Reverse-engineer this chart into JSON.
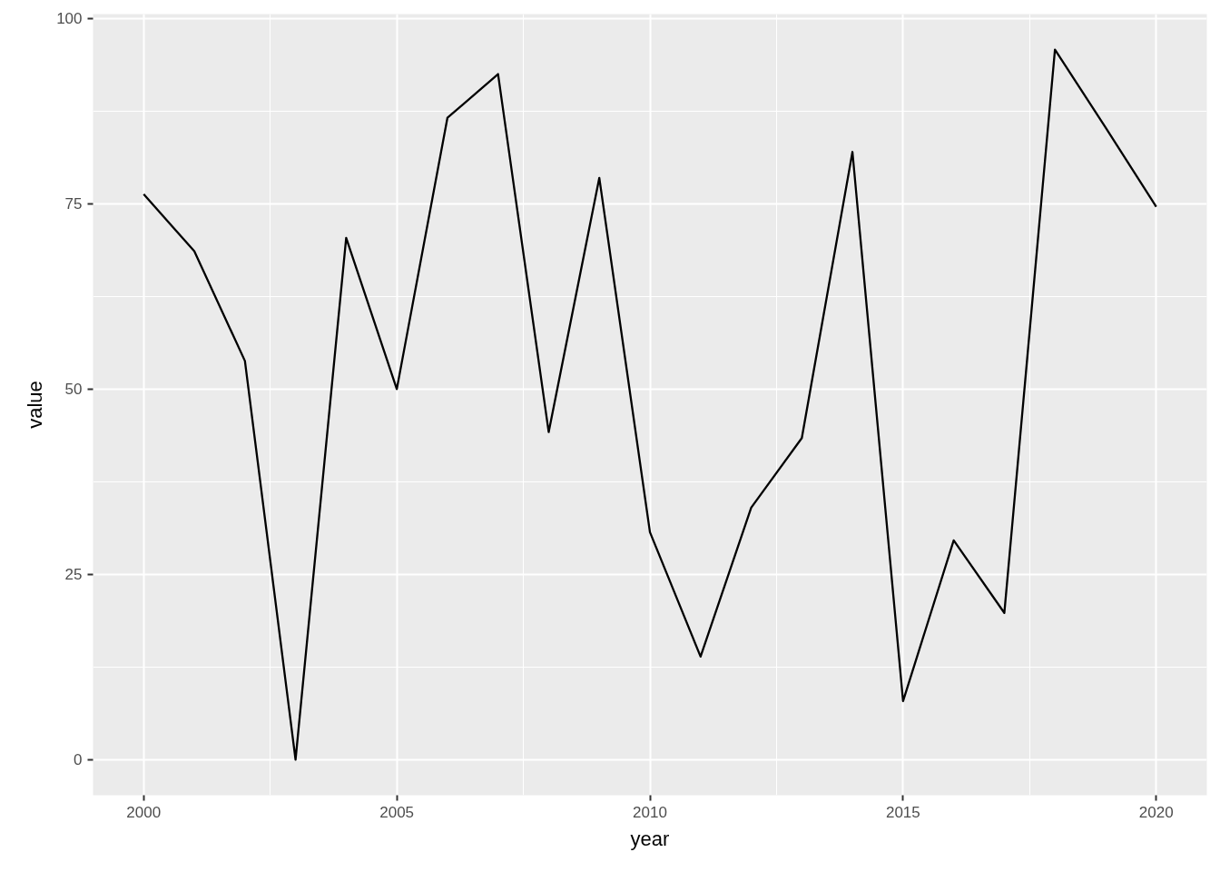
{
  "chart_data": {
    "type": "line",
    "xlabel": "year",
    "ylabel": "value",
    "x": [
      2000,
      2001,
      2002,
      2003,
      2004,
      2005,
      2006,
      2007,
      2008,
      2009,
      2010,
      2011,
      2012,
      2013,
      2014,
      2015,
      2016,
      2017,
      2018,
      2019,
      2020
    ],
    "series": [
      {
        "color": "#000000",
        "values": [
          76.3,
          68.6,
          53.8,
          0.0,
          70.4,
          50.0,
          86.6,
          92.5,
          44.2,
          78.5,
          30.7,
          13.9,
          34.0,
          43.4,
          82.0,
          7.9,
          29.6,
          19.8,
          95.8,
          85.3,
          74.6
        ]
      }
    ],
    "xlim": [
      1999,
      2021
    ],
    "ylim": [
      -4.8,
      100.6
    ],
    "xticks": [
      2000,
      2005,
      2010,
      2015,
      2020
    ],
    "yticks": [
      0,
      25,
      50,
      75,
      100
    ],
    "grid": true,
    "line_style": "solid"
  }
}
